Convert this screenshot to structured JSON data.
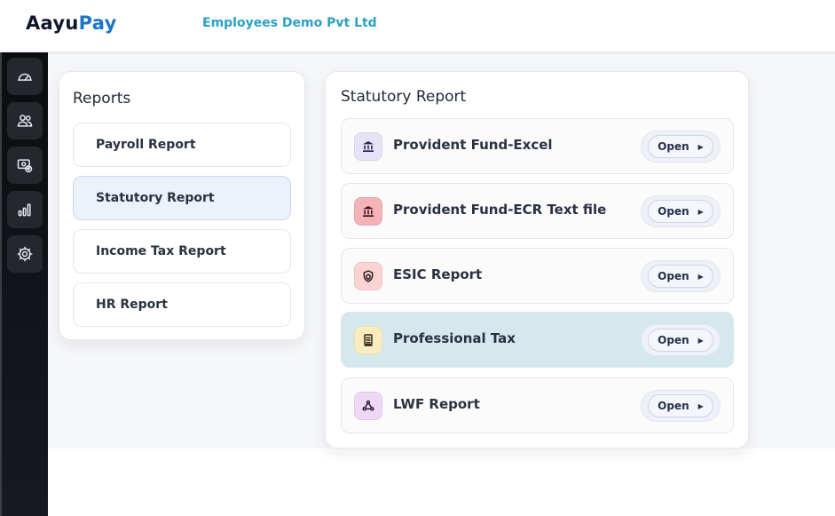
{
  "header": {
    "logo_part1": "Aayu",
    "logo_part2": "Pay",
    "company_name": "Employees Demo Pvt Ltd"
  },
  "sidebar": {
    "items": [
      {
        "name": "dashboard",
        "icon": "speedometer-icon"
      },
      {
        "name": "employees",
        "icon": "users-icon"
      },
      {
        "name": "payroll",
        "icon": "money-icon"
      },
      {
        "name": "reports",
        "icon": "bar-chart-icon"
      },
      {
        "name": "settings",
        "icon": "gear-icon"
      }
    ]
  },
  "reports_card": {
    "title": "Reports",
    "items": [
      {
        "label": "Payroll Report",
        "active": false
      },
      {
        "label": "Statutory Report",
        "active": true
      },
      {
        "label": "Income Tax Report",
        "active": false
      },
      {
        "label": "HR Report",
        "active": false
      }
    ]
  },
  "statutory_card": {
    "title": "Statutory Report",
    "open_label": "Open",
    "items": [
      {
        "label": "Provident Fund-Excel",
        "icon": "bank-icon",
        "icon_bg": "#e6e3f7",
        "icon_color": "#2b2250",
        "active": false
      },
      {
        "label": "Provident Fund-ECR Text file",
        "icon": "bank-icon",
        "icon_bg": "#f5b3b8",
        "icon_color": "#3b1014",
        "active": false
      },
      {
        "label": "ESIC Report",
        "icon": "shield-icon",
        "icon_bg": "#fbd3d3",
        "icon_color": "#2a1a1a",
        "active": false
      },
      {
        "label": "Professional Tax",
        "icon": "receipt-icon",
        "icon_bg": "#fbecc0",
        "icon_color": "#2b2410",
        "active": true
      },
      {
        "label": "LWF Report",
        "icon": "network-icon",
        "icon_bg": "#f0d7f5",
        "icon_color": "#2d1733",
        "active": false
      }
    ]
  }
}
